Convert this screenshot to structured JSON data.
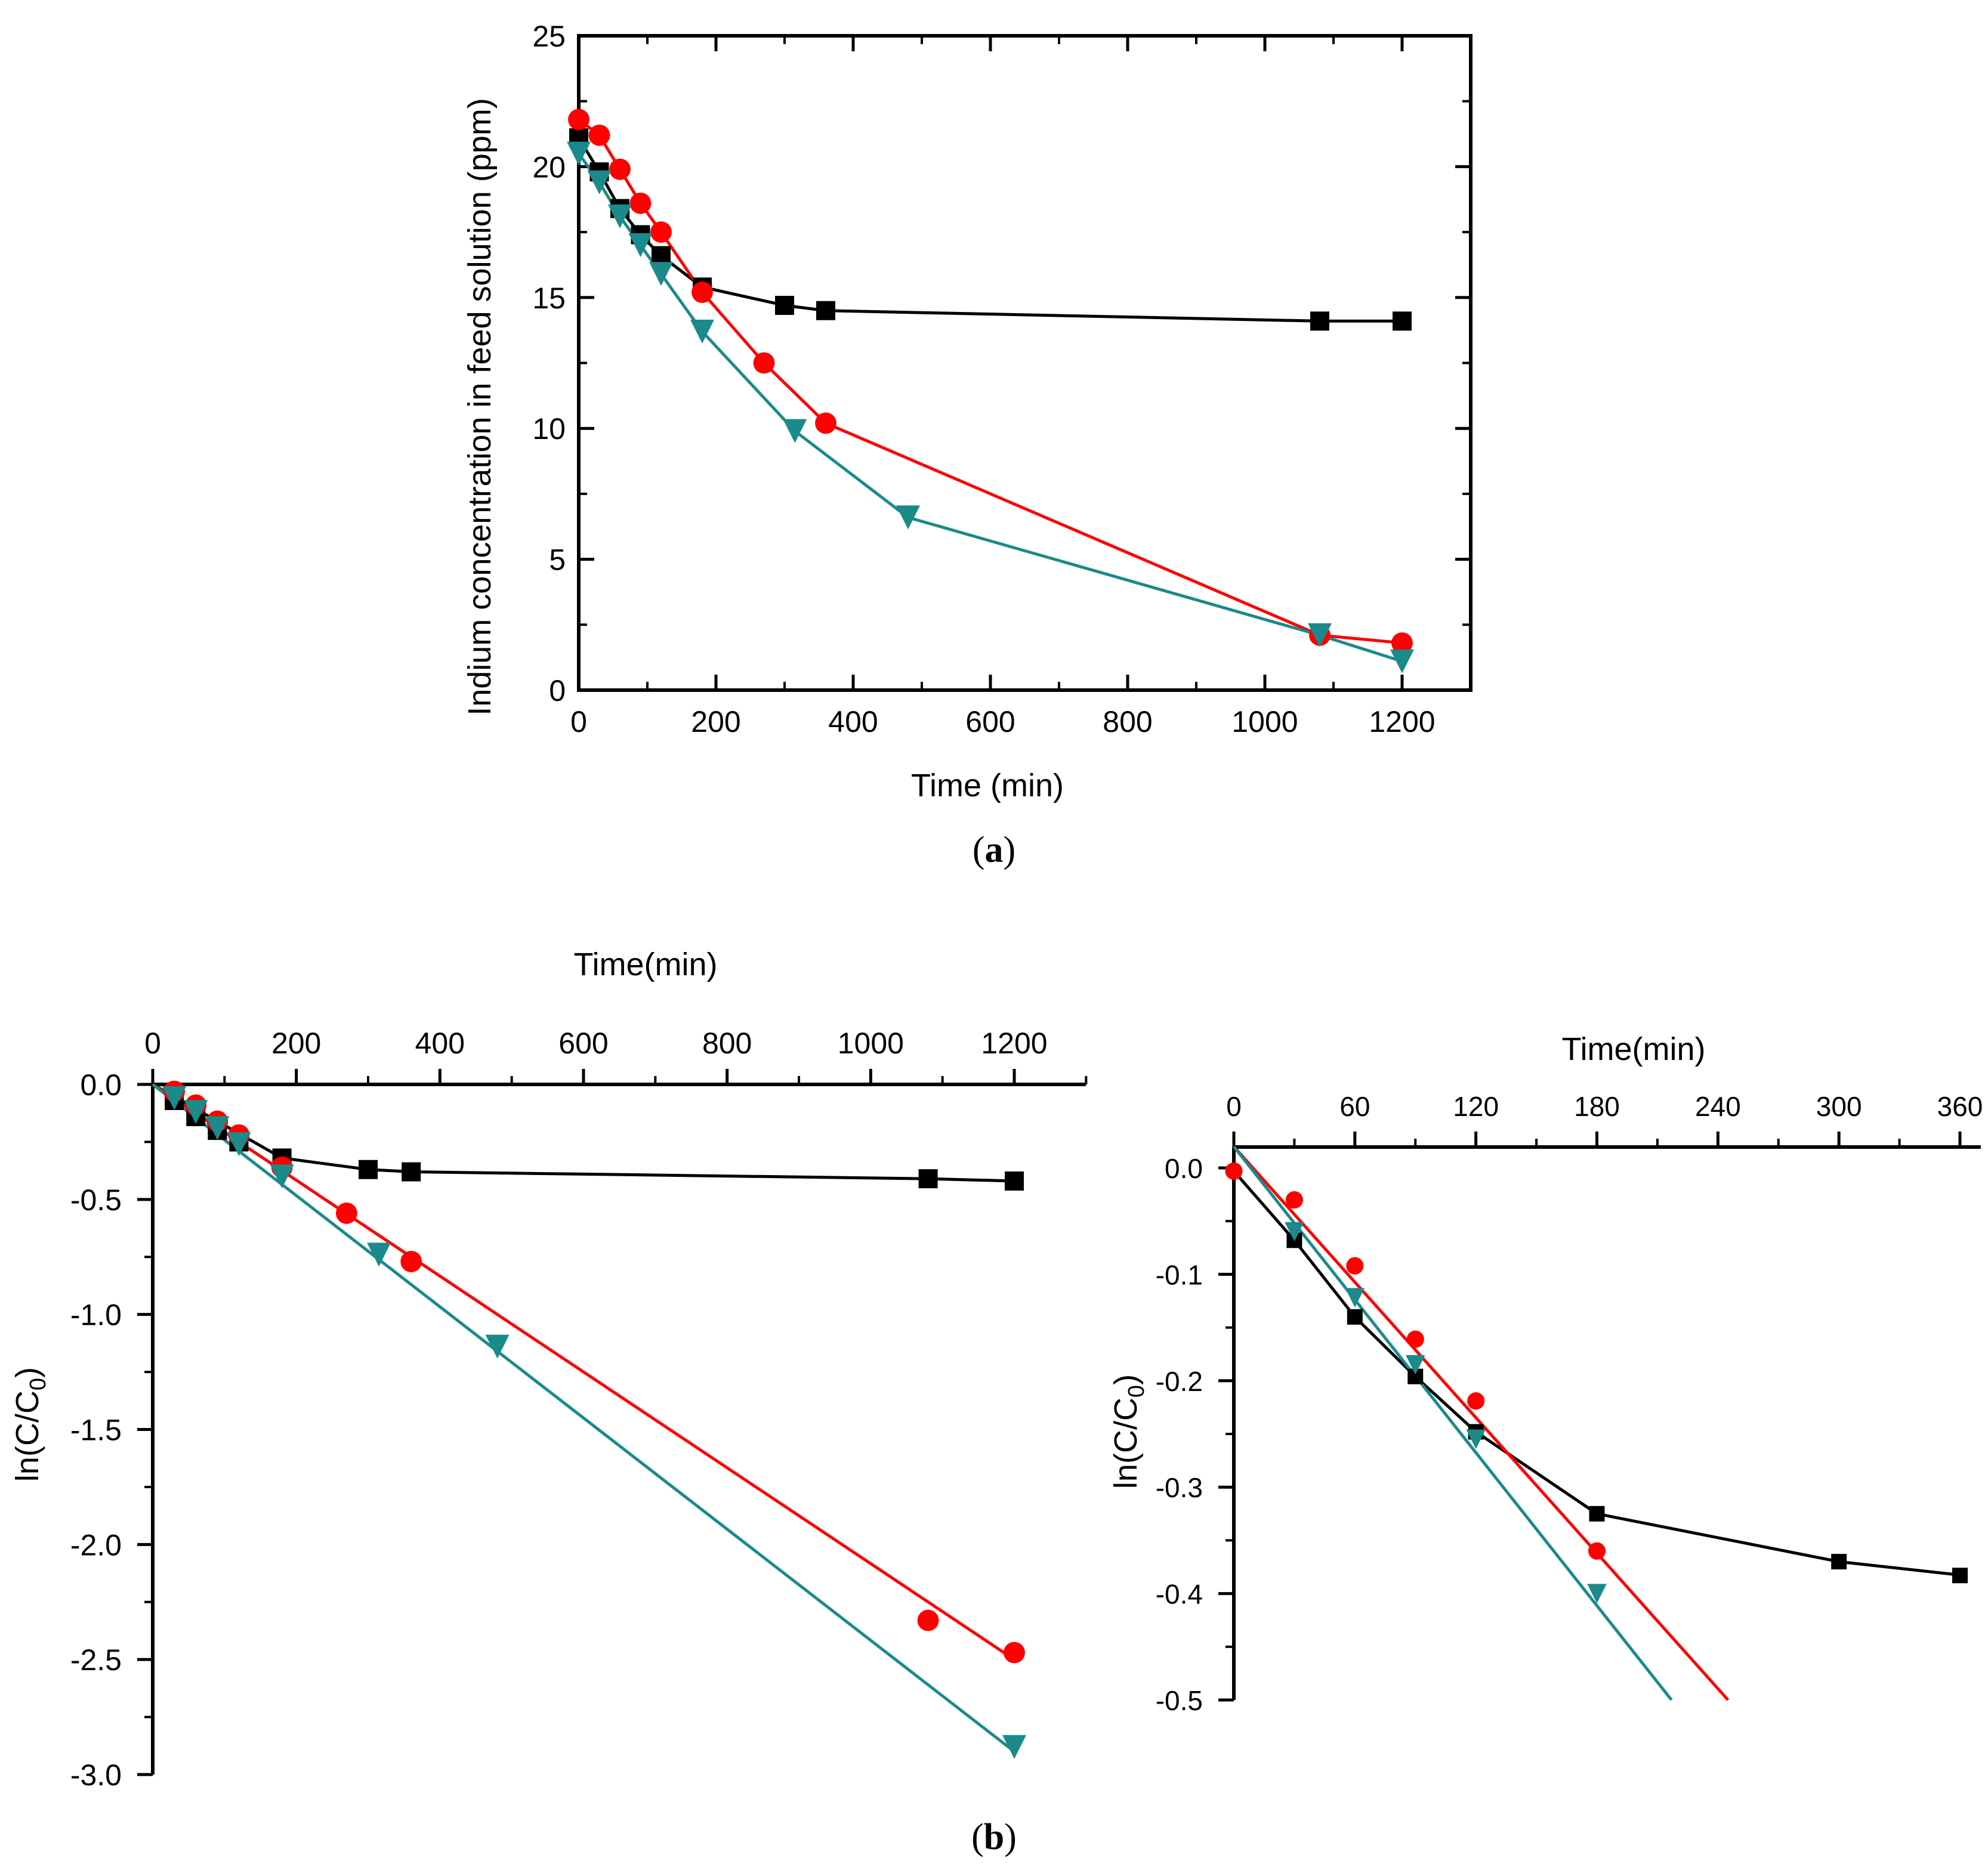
{
  "colors": {
    "black": "#000000",
    "red": "#ff0000",
    "teal": "#1a8a8a"
  },
  "labels": {
    "a": {
      "open": "(",
      "letter": "a",
      "close": ")"
    },
    "b": {
      "open": "(",
      "letter": "b",
      "close": ")"
    }
  },
  "chart_data": [
    {
      "id": "a",
      "type": "line",
      "xlabel": "Time (min)",
      "ylabel": "Indium concentration in feed solution (ppm)",
      "xlim": [
        0,
        1300
      ],
      "ylim": [
        0,
        25
      ],
      "xticks": [
        0,
        200,
        400,
        600,
        800,
        1000,
        1200
      ],
      "yticks": [
        0,
        5,
        10,
        15,
        20,
        25
      ],
      "series": [
        {
          "name": "black squares",
          "color": "#000000",
          "marker": "square",
          "x": [
            0,
            30,
            60,
            90,
            120,
            180,
            300,
            360,
            1080,
            1200
          ],
          "y": [
            21.1,
            19.8,
            18.4,
            17.4,
            16.6,
            15.4,
            14.7,
            14.5,
            14.1,
            14.1
          ]
        },
        {
          "name": "red circles",
          "color": "#ff0000",
          "marker": "circle",
          "x": [
            0,
            30,
            60,
            90,
            120,
            180,
            270,
            360,
            1080,
            1200
          ],
          "y": [
            21.8,
            21.2,
            19.9,
            18.6,
            17.5,
            15.2,
            12.5,
            10.2,
            2.1,
            1.8
          ]
        },
        {
          "name": "teal triangles",
          "color": "#1a8a8a",
          "marker": "triangle",
          "x": [
            0,
            30,
            60,
            90,
            120,
            180,
            315,
            480,
            1080,
            1200
          ],
          "y": [
            20.5,
            19.4,
            18.1,
            17.0,
            15.9,
            13.7,
            9.9,
            6.6,
            2.1,
            1.1
          ]
        }
      ]
    },
    {
      "id": "b-left",
      "type": "scatter",
      "xlabel": "Time(min)",
      "ylabel_main": "ln(C/C",
      "ylabel_sub": "0",
      "ylabel_end": ")",
      "xlim": [
        0,
        1300
      ],
      "ylim": [
        -3.0,
        0.0
      ],
      "xticks": [
        0,
        200,
        400,
        600,
        800,
        1000,
        1200
      ],
      "yticks": [
        "0.0",
        "-0.5",
        "-1.0",
        "-1.5",
        "-2.0",
        "-2.5",
        "-3.0"
      ],
      "series": [
        {
          "name": "black squares",
          "color": "#000000",
          "marker": "square",
          "x": [
            30,
            60,
            90,
            120,
            180,
            300,
            360,
            1080,
            1200
          ],
          "y": [
            -0.07,
            -0.14,
            -0.2,
            -0.25,
            -0.32,
            -0.37,
            -0.38,
            -0.41,
            -0.42
          ]
        },
        {
          "name": "red circles",
          "color": "#ff0000",
          "marker": "circle",
          "x": [
            30,
            60,
            90,
            120,
            180,
            270,
            360,
            1080,
            1200
          ],
          "y": [
            -0.03,
            -0.09,
            -0.16,
            -0.22,
            -0.36,
            -0.56,
            -0.77,
            -2.33,
            -2.47
          ]
        },
        {
          "name": "teal triangles",
          "color": "#1a8a8a",
          "marker": "triangle",
          "x": [
            30,
            60,
            90,
            120,
            180,
            315,
            480,
            1200
          ],
          "y": [
            -0.06,
            -0.12,
            -0.19,
            -0.26,
            -0.4,
            -0.74,
            -1.14,
            -2.88
          ]
        }
      ],
      "fits": [
        {
          "color": "#000000",
          "points": [
            [
              0,
              0.0
            ],
            [
              180,
              -0.32
            ],
            [
              300,
              -0.37
            ],
            [
              360,
              -0.38
            ],
            [
              1080,
              -0.41
            ],
            [
              1200,
              -0.42
            ]
          ]
        },
        {
          "color": "#ff0000",
          "points": [
            [
              0,
              0.0
            ],
            [
              1200,
              -2.5
            ]
          ]
        },
        {
          "color": "#1a8a8a",
          "points": [
            [
              0,
              0.0
            ],
            [
              1200,
              -2.9
            ]
          ]
        }
      ]
    },
    {
      "id": "b-right",
      "type": "scatter",
      "xlabel": "Time(min)",
      "ylabel_main": "ln(C/C",
      "ylabel_sub": "0",
      "ylabel_end": ")",
      "xlim": [
        0,
        360
      ],
      "ylim": [
        -0.5,
        0.02
      ],
      "xticks": [
        "0",
        "60",
        "120",
        "180",
        "240",
        "300",
        "360"
      ],
      "yticks": [
        "0.0",
        "-0.1",
        "-0.2",
        "-0.3",
        "-0.4",
        "-0.5"
      ],
      "series": [
        {
          "name": "black squares",
          "color": "#000000",
          "marker": "square",
          "x": [
            30,
            60,
            90,
            120,
            180,
            300,
            360
          ],
          "y": [
            -0.068,
            -0.14,
            -0.196,
            -0.248,
            -0.325,
            -0.37,
            -0.383
          ]
        },
        {
          "name": "red circles",
          "color": "#ff0000",
          "marker": "circle",
          "x": [
            0,
            30,
            60,
            90,
            120,
            180
          ],
          "y": [
            -0.003,
            -0.03,
            -0.092,
            -0.161,
            -0.219,
            -0.36
          ]
        },
        {
          "name": "teal triangles",
          "color": "#1a8a8a",
          "marker": "triangle",
          "x": [
            30,
            60,
            90,
            120,
            180
          ],
          "y": [
            -0.06,
            -0.122,
            -0.185,
            -0.255,
            -0.4
          ]
        }
      ],
      "fits": [
        {
          "color": "#000000",
          "points": [
            [
              0,
              -0.003
            ],
            [
              30,
              -0.068
            ],
            [
              60,
              -0.14
            ],
            [
              90,
              -0.196
            ],
            [
              120,
              -0.248
            ],
            [
              180,
              -0.325
            ],
            [
              300,
              -0.37
            ],
            [
              362,
              -0.383
            ]
          ]
        },
        {
          "color": "#ff0000",
          "points": [
            [
              0,
              0.02
            ],
            [
              245,
              -0.5
            ]
          ]
        },
        {
          "color": "#1a8a8a",
          "points": [
            [
              0,
              0.02
            ],
            [
              217,
              -0.5
            ]
          ]
        }
      ]
    }
  ]
}
